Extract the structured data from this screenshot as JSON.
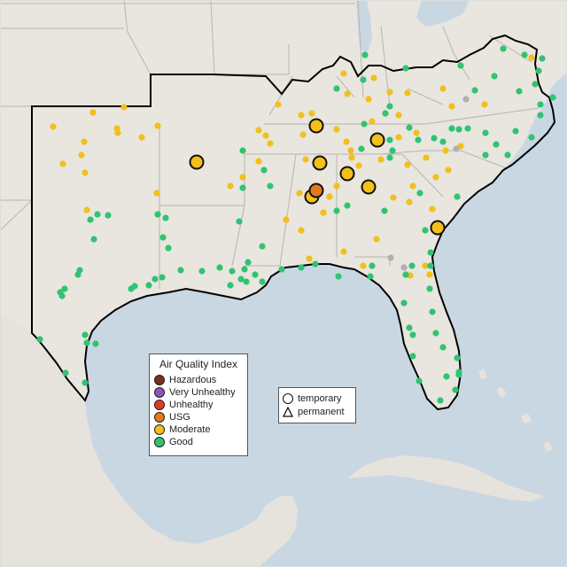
{
  "legend": {
    "title": "Air Quality Index",
    "categories": [
      {
        "label": "Hazardous",
        "color": "#7e2c1b"
      },
      {
        "label": "Very Unhealthy",
        "color": "#8e55b0"
      },
      {
        "label": "Unhealthy",
        "color": "#e03b2a"
      },
      {
        "label": "USG",
        "color": "#e07b1e"
      },
      {
        "label": "Moderate",
        "color": "#f2c018"
      },
      {
        "label": "Good",
        "color": "#2ec471"
      }
    ]
  },
  "monitor_legend": {
    "temporary": "temporary",
    "permanent": "permanent"
  },
  "colors": {
    "water": "#c9d7e3",
    "land": "#e9e5df",
    "border": "#b5b5b5",
    "region_outline": "#000000",
    "no_data": "#b0b0b0"
  }
}
